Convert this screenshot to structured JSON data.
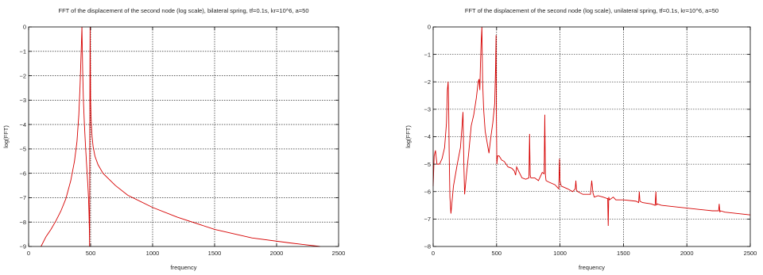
{
  "chart_data": [
    {
      "type": "line",
      "title": "FFT of the  displacement of the second  node (log scale), bilateral spring, tf=0.1s, kr=10^6, a=50",
      "xlabel": "frequency",
      "ylabel": "log(FFT)",
      "xlim": [
        0,
        2500
      ],
      "ylim": [
        -9,
        0
      ],
      "xticks": [
        "0",
        "500",
        "1000",
        "1500",
        "2000",
        "2500"
      ],
      "yticks": [
        "0",
        "−1",
        "−2",
        "−3",
        "−4",
        "−5",
        "−6",
        "−7",
        "−8",
        "−9"
      ],
      "grid": true,
      "series": [
        {
          "color": "#d60000",
          "x": [
            100,
            140,
            180,
            220,
            260,
            300,
            340,
            370,
            390,
            405,
            415,
            422,
            427,
            430,
            432,
            436,
            442,
            450,
            458,
            466,
            472,
            478,
            483,
            487,
            490,
            492,
            493,
            494,
            496,
            500,
            505,
            512,
            520,
            535,
            560,
            600,
            700,
            800,
            1000,
            1200,
            1500,
            1800,
            2100,
            2350
          ],
          "y": [
            -9.0,
            -8.6,
            -8.3,
            -7.95,
            -7.55,
            -7.05,
            -6.3,
            -5.5,
            -4.7,
            -3.6,
            -2.4,
            -1.3,
            -0.5,
            0.0,
            -0.6,
            -1.8,
            -3.0,
            -4.0,
            -4.8,
            -5.5,
            -6.0,
            -6.5,
            -7.0,
            -7.6,
            -8.3,
            -9.0,
            -6.0,
            -3.0,
            0.0,
            -3.0,
            -3.9,
            -4.5,
            -4.9,
            -5.3,
            -5.65,
            -6.0,
            -6.5,
            -6.9,
            -7.4,
            -7.8,
            -8.3,
            -8.65,
            -8.85,
            -9.0
          ]
        }
      ]
    },
    {
      "type": "line",
      "title": "FFT of the  displacement of the second  node (log scale), unilateral spring, tf=0.1s, kr=10^6, a=50",
      "xlabel": "frequency",
      "ylabel": "log(FFT)",
      "xlim": [
        0,
        2500
      ],
      "ylim": [
        -8,
        0
      ],
      "xticks": [
        "0",
        "500",
        "1000",
        "1500",
        "2000",
        "2500"
      ],
      "yticks": [
        "0",
        "−1",
        "−2",
        "−3",
        "−4",
        "−5",
        "−6",
        "−7",
        "−8"
      ],
      "grid": true,
      "series": [
        {
          "color": "#d60000",
          "x": [
            0,
            8,
            18,
            30,
            50,
            70,
            90,
            105,
            112,
            118,
            122,
            126,
            132,
            140,
            160,
            190,
            215,
            228,
            235,
            242,
            248,
            254,
            262,
            280,
            300,
            320,
            340,
            355,
            362,
            368,
            372,
            378,
            384,
            390,
            398,
            410,
            425,
            440,
            455,
            470,
            485,
            492,
            496,
            498,
            502,
            508,
            520,
            540,
            560,
            590,
            620,
            640,
            650,
            658,
            668,
            700,
            730,
            755,
            760,
            765,
            770,
            800,
            830,
            860,
            875,
            880,
            885,
            890,
            910,
            960,
            990,
            996,
            1000,
            1004,
            1010,
            1060,
            1100,
            1120,
            1125,
            1130,
            1140,
            1180,
            1240,
            1250,
            1260,
            1270,
            1300,
            1340,
            1370,
            1376,
            1380,
            1384,
            1390,
            1420,
            1440,
            1500,
            1600,
            1620,
            1625,
            1630,
            1650,
            1720,
            1750,
            1756,
            1760,
            1765,
            1800,
            1900,
            2000,
            2100,
            2200,
            2250,
            2255,
            2260,
            2265,
            2300,
            2400,
            2500
          ],
          "y": [
            -5.8,
            -4.7,
            -4.5,
            -5.0,
            -5.0,
            -4.8,
            -4.4,
            -3.5,
            -2.3,
            -2.0,
            -2.8,
            -4.5,
            -6.2,
            -6.8,
            -5.8,
            -5.0,
            -4.4,
            -3.6,
            -3.1,
            -5.0,
            -6.1,
            -5.8,
            -5.4,
            -4.6,
            -3.6,
            -3.2,
            -2.6,
            -2.0,
            -1.9,
            -2.3,
            -1.5,
            -0.6,
            0.0,
            -2.0,
            -3.0,
            -3.8,
            -4.2,
            -4.6,
            -4.0,
            -3.5,
            -2.8,
            -1.5,
            -0.3,
            -3.0,
            -5.0,
            -4.7,
            -4.7,
            -4.85,
            -4.9,
            -5.1,
            -5.15,
            -5.25,
            -5.4,
            -5.1,
            -5.2,
            -5.5,
            -5.55,
            -5.5,
            -3.9,
            -5.4,
            -5.5,
            -5.5,
            -5.6,
            -5.3,
            -5.35,
            -3.2,
            -5.4,
            -5.6,
            -5.65,
            -5.75,
            -5.9,
            -4.8,
            -5.6,
            -5.7,
            -5.8,
            -5.9,
            -6.0,
            -5.9,
            -5.6,
            -5.95,
            -6.0,
            -6.1,
            -6.1,
            -5.6,
            -6.05,
            -6.2,
            -6.15,
            -6.2,
            -6.25,
            -6.25,
            -7.25,
            -6.2,
            -6.3,
            -6.2,
            -6.3,
            -6.3,
            -6.35,
            -6.4,
            -6.0,
            -6.35,
            -6.4,
            -6.45,
            -6.5,
            -6.0,
            -6.5,
            -6.45,
            -6.5,
            -6.55,
            -6.6,
            -6.65,
            -6.7,
            -6.7,
            -6.45,
            -6.75,
            -6.7,
            -6.75,
            -6.8,
            -6.85
          ]
        }
      ]
    }
  ]
}
